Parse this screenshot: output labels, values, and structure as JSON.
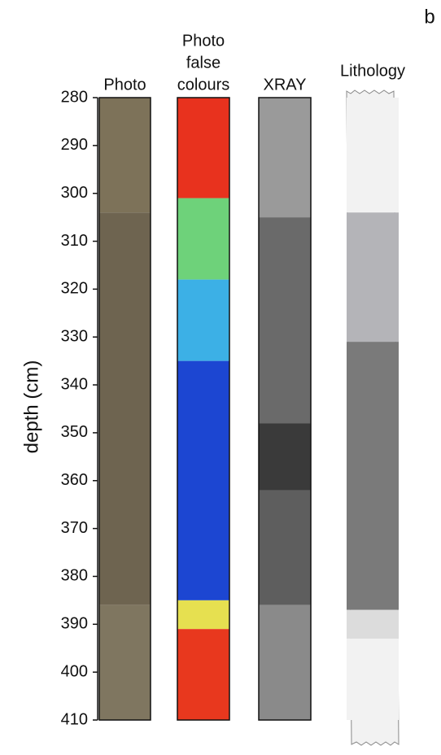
{
  "chart_data": {
    "type": "core",
    "panel_label": "b",
    "ylabel": "depth (cm)",
    "ylim": [
      280,
      410
    ],
    "yticks": [
      280,
      290,
      300,
      310,
      320,
      330,
      340,
      350,
      360,
      370,
      380,
      390,
      400,
      410
    ],
    "columns": [
      {
        "name_lines": [
          "Photo"
        ],
        "segments": [
          {
            "top": 280,
            "bottom": 304,
            "color": "#7d7259"
          },
          {
            "top": 304,
            "bottom": 386,
            "color": "#6e6450"
          },
          {
            "top": 386,
            "bottom": 410,
            "color": "#7f7660"
          }
        ]
      },
      {
        "name_lines": [
          "Photo",
          "false",
          "colours"
        ],
        "segments": [
          {
            "top": 280,
            "bottom": 301,
            "color": "#e8321e"
          },
          {
            "top": 301,
            "bottom": 318,
            "color": "#6ed27a"
          },
          {
            "top": 318,
            "bottom": 335,
            "color": "#3cb0e6"
          },
          {
            "top": 335,
            "bottom": 385,
            "color": "#1c46d2"
          },
          {
            "top": 385,
            "bottom": 391,
            "color": "#e6e050"
          },
          {
            "top": 391,
            "bottom": 410,
            "color": "#e8381e"
          }
        ]
      },
      {
        "name_lines": [
          "XRAY"
        ],
        "segments": [
          {
            "top": 280,
            "bottom": 305,
            "color": "#9a9a9a"
          },
          {
            "top": 305,
            "bottom": 348,
            "color": "#6a6a6a"
          },
          {
            "top": 348,
            "bottom": 362,
            "color": "#3a3a3a"
          },
          {
            "top": 362,
            "bottom": 386,
            "color": "#5e5e5e"
          },
          {
            "top": 386,
            "bottom": 410,
            "color": "#8a8a8a"
          }
        ]
      },
      {
        "name_lines": [
          "Lithology"
        ],
        "segments": [
          {
            "top": 280,
            "bottom": 304,
            "color": "#f2f2f2"
          },
          {
            "top": 304,
            "bottom": 331,
            "color": "#b4b4b8"
          },
          {
            "top": 331,
            "bottom": 387,
            "color": "#7a7a7a"
          },
          {
            "top": 387,
            "bottom": 393,
            "color": "#dcdcdc"
          },
          {
            "top": 393,
            "bottom": 410,
            "color": "#f2f2f2"
          }
        ]
      }
    ]
  }
}
